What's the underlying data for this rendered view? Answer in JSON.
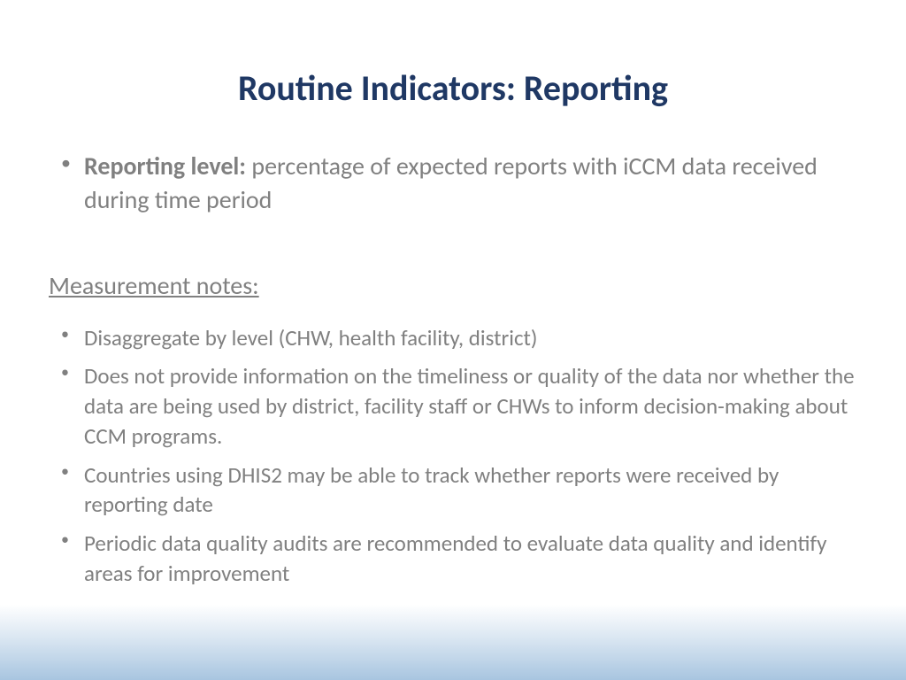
{
  "title": "Routine Indicators: Reporting",
  "main_bullet": {
    "label": "Reporting level:",
    "text": " percentage of expected reports with iCCM data received during time period"
  },
  "subheading": "Measurement notes:",
  "notes": [
    "Disaggregate by level (CHW, health facility, district)",
    "Does not provide information on the timeliness or quality of the data nor whether the data are being used by district, facility staff or CHWs to inform decision-making about CCM programs.",
    "Countries using DHIS2 may be able to track whether reports were received by reporting date",
    "Periodic data quality audits are recommended to evaluate data quality and identify areas for improvement"
  ],
  "colors": {
    "title_color": "#1f3864",
    "text_color": "#808080",
    "gradient_start": "#ffffff",
    "gradient_mid": "#d5e3f0",
    "gradient_end": "#a8c5e0"
  },
  "typography": {
    "title_fontsize": 40,
    "body_fontsize": 28,
    "notes_fontsize": 25,
    "font_family": "Gill Sans"
  }
}
